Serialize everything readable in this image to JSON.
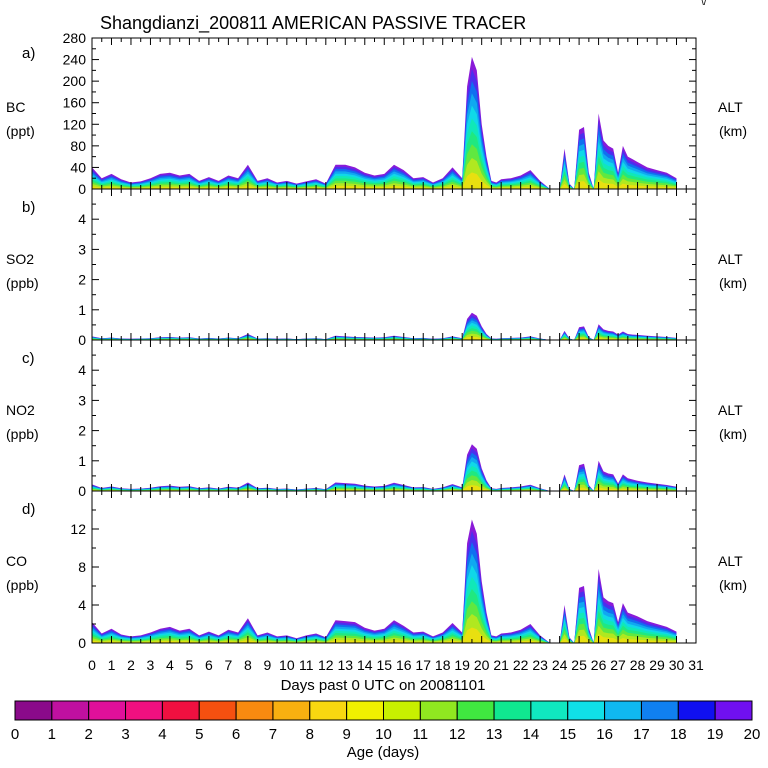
{
  "title": "Shangdianzi_200811 AMERICAN PASSIVE TRACER",
  "corner_mark": "\\/",
  "x_axis": {
    "label": "Days past 0 UTC on 20081101",
    "ticks": [
      "0",
      "1",
      "2",
      "3",
      "4",
      "5",
      "6",
      "7",
      "8",
      "9",
      "10",
      "11",
      "12",
      "13",
      "14",
      "15",
      "16",
      "17",
      "18",
      "19",
      "20",
      "21",
      "22",
      "23",
      "24",
      "25",
      "26",
      "27",
      "28",
      "29",
      "30",
      "31"
    ]
  },
  "panels": [
    {
      "letter": "a)",
      "name": "BC",
      "unit": "(ppt)",
      "right_label": "ALT",
      "right_unit": "(km)",
      "ymax": 280,
      "yticks": [
        "0",
        "40",
        "80",
        "120",
        "160",
        "200",
        "240",
        "280"
      ],
      "minor_step": 20
    },
    {
      "letter": "b)",
      "name": "SO2",
      "unit": "(ppb)",
      "right_label": "ALT",
      "right_unit": "(km)",
      "ymax": 5,
      "yticks": [
        "0",
        "1",
        "2",
        "3",
        "4"
      ],
      "minor_step": 0.5
    },
    {
      "letter": "c)",
      "name": "NO2",
      "unit": "(ppb)",
      "right_label": "ALT",
      "right_unit": "(km)",
      "ymax": 5,
      "yticks": [
        "0",
        "1",
        "2",
        "3",
        "4"
      ],
      "minor_step": 0.5
    },
    {
      "letter": "d)",
      "name": "CO",
      "unit": "(ppb)",
      "right_label": "ALT",
      "right_unit": "(km)",
      "ymax": 16,
      "yticks": [
        "0",
        "4",
        "8",
        "12"
      ],
      "minor_step": 2
    }
  ],
  "colorbar": {
    "label": "Age (days)",
    "ticks": [
      "0",
      "1",
      "2",
      "3",
      "4",
      "5",
      "6",
      "7",
      "8",
      "9",
      "10",
      "11",
      "12",
      "13",
      "14",
      "15",
      "16",
      "17",
      "18",
      "19",
      "20"
    ],
    "colors": [
      "#8a0a8a",
      "#c010a0",
      "#e0109a",
      "#f01080",
      "#f01040",
      "#f55010",
      "#f88a10",
      "#f8b010",
      "#f8d810",
      "#f0f000",
      "#c8f000",
      "#90e820",
      "#40e840",
      "#10e890",
      "#10e8c0",
      "#10e0e8",
      "#10b8f0",
      "#1080f0",
      "#1010f0",
      "#7010f0"
    ]
  },
  "chart_data": {
    "type": "area",
    "stacked_by": "age (days)",
    "x_unit": "days past 0 UTC on 20081101",
    "xlim": [
      0,
      31
    ],
    "x": [
      0,
      0.5,
      1,
      1.5,
      2,
      2.5,
      3,
      3.5,
      4,
      4.5,
      5,
      5.5,
      6,
      6.5,
      7,
      7.5,
      8,
      8.5,
      9,
      9.5,
      10,
      10.5,
      11,
      11.5,
      12,
      12.5,
      13,
      13.5,
      14,
      14.5,
      15,
      15.5,
      16,
      16.5,
      17,
      17.5,
      18,
      18.5,
      19,
      19.25,
      19.5,
      19.75,
      20,
      20.25,
      20.5,
      20.75,
      21,
      21.5,
      22,
      22.5,
      23,
      23.5,
      24,
      24.25,
      24.5,
      24.75,
      25,
      25.25,
      25.5,
      25.75,
      26,
      26.25,
      26.5,
      26.75,
      27,
      27.25,
      27.5,
      27.75,
      28,
      28.5,
      29,
      29.5,
      30
    ],
    "series": [
      {
        "panel": "BC",
        "ylim": [
          0,
          280
        ],
        "values": [
          40,
          20,
          28,
          18,
          12,
          14,
          20,
          28,
          30,
          25,
          28,
          15,
          22,
          15,
          25,
          20,
          45,
          15,
          20,
          12,
          15,
          10,
          14,
          18,
          10,
          45,
          45,
          40,
          30,
          25,
          28,
          45,
          35,
          20,
          22,
          12,
          20,
          40,
          20,
          190,
          245,
          220,
          120,
          60,
          15,
          12,
          18,
          20,
          25,
          35,
          15,
          0,
          0,
          75,
          10,
          0,
          110,
          115,
          30,
          0,
          140,
          90,
          80,
          75,
          30,
          80,
          60,
          55,
          50,
          40,
          35,
          30,
          20
        ]
      },
      {
        "panel": "SO2",
        "ylim": [
          0,
          5
        ],
        "values": [
          0.12,
          0.06,
          0.08,
          0.05,
          0.04,
          0.05,
          0.06,
          0.09,
          0.1,
          0.08,
          0.09,
          0.05,
          0.07,
          0.05,
          0.08,
          0.06,
          0.2,
          0.05,
          0.06,
          0.04,
          0.05,
          0.03,
          0.05,
          0.06,
          0.03,
          0.14,
          0.12,
          0.1,
          0.09,
          0.08,
          0.09,
          0.14,
          0.1,
          0.06,
          0.07,
          0.04,
          0.06,
          0.12,
          0.06,
          0.7,
          0.9,
          0.8,
          0.45,
          0.2,
          0.05,
          0.04,
          0.06,
          0.07,
          0.08,
          0.12,
          0.05,
          0,
          0,
          0.3,
          0.05,
          0,
          0.42,
          0.45,
          0.1,
          0,
          0.52,
          0.35,
          0.3,
          0.28,
          0.18,
          0.28,
          0.2,
          0.18,
          0.17,
          0.14,
          0.12,
          0.1,
          0.07
        ]
      },
      {
        "panel": "NO2",
        "ylim": [
          0,
          5
        ],
        "values": [
          0.22,
          0.1,
          0.15,
          0.09,
          0.07,
          0.08,
          0.11,
          0.16,
          0.18,
          0.14,
          0.16,
          0.09,
          0.12,
          0.08,
          0.14,
          0.11,
          0.28,
          0.09,
          0.11,
          0.07,
          0.08,
          0.05,
          0.08,
          0.1,
          0.06,
          0.28,
          0.26,
          0.24,
          0.18,
          0.15,
          0.17,
          0.27,
          0.2,
          0.12,
          0.13,
          0.07,
          0.12,
          0.23,
          0.12,
          1.2,
          1.55,
          1.4,
          0.75,
          0.35,
          0.09,
          0.07,
          0.1,
          0.12,
          0.15,
          0.21,
          0.09,
          0,
          0,
          0.55,
          0.07,
          0,
          0.85,
          0.9,
          0.2,
          0,
          1.0,
          0.65,
          0.58,
          0.55,
          0.25,
          0.55,
          0.42,
          0.38,
          0.34,
          0.28,
          0.24,
          0.2,
          0.14
        ]
      },
      {
        "panel": "CO",
        "ylim": [
          0,
          16
        ],
        "values": [
          2.2,
          1.0,
          1.5,
          0.9,
          0.7,
          0.8,
          1.1,
          1.5,
          1.7,
          1.3,
          1.5,
          0.8,
          1.2,
          0.8,
          1.4,
          1.1,
          2.6,
          0.8,
          1.1,
          0.7,
          0.8,
          0.5,
          0.8,
          1.0,
          0.6,
          2.4,
          2.3,
          2.2,
          1.6,
          1.3,
          1.5,
          2.4,
          1.8,
          1.1,
          1.2,
          0.7,
          1.1,
          2.1,
          1.1,
          10.5,
          13.0,
          11.5,
          6.5,
          3.2,
          0.8,
          0.7,
          1.0,
          1.1,
          1.4,
          2.0,
          0.8,
          0,
          0,
          4.0,
          0.6,
          0,
          5.8,
          6.0,
          1.6,
          0,
          7.8,
          4.8,
          4.4,
          4.2,
          2.2,
          4.2,
          3.2,
          3.0,
          2.8,
          2.3,
          2.0,
          1.7,
          1.2
        ]
      }
    ]
  }
}
